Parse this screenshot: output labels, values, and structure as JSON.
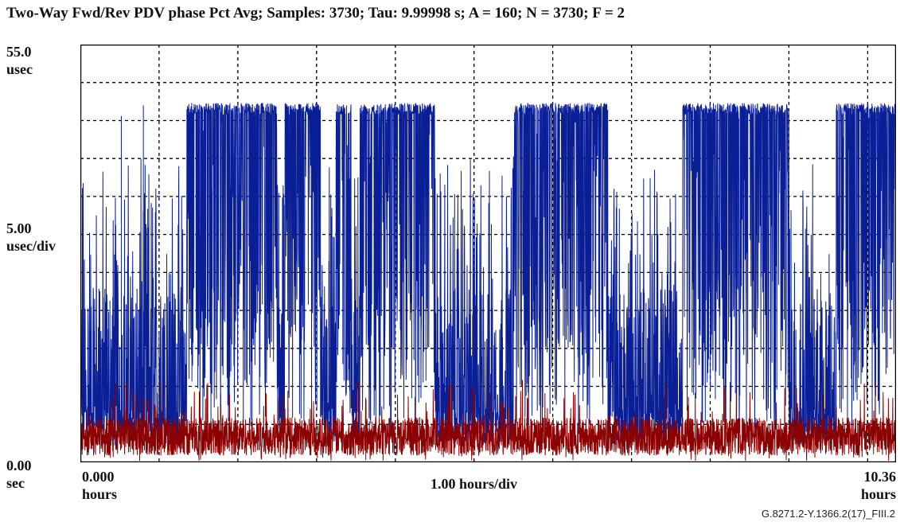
{
  "title": "Two-Way Fwd/Rev PDV phase Pct Avg; Samples: 3730; Tau: 9.99998 s; A = 160; N = 3730; F = 2",
  "y_axis": {
    "top_value": "55.0",
    "top_unit": "usec",
    "scale_value": "5.00",
    "scale_unit": "usec/div",
    "bottom_value": "0.00",
    "bottom_unit": "sec"
  },
  "x_axis": {
    "left_value": "0.000",
    "left_unit": "hours",
    "scale_label": "1.00 hours/div",
    "right_value": "10.36",
    "right_unit": "hours"
  },
  "footnote": "G.8271.2-Y.1366.2(17)_FIII.2",
  "chart_data": {
    "type": "line",
    "title": "Two-Way Fwd/Rev PDV phase Pct Avg; Samples: 3730; Tau: 9.99998 s; A = 160; N = 3730; F = 2",
    "samples": 3730,
    "xlim_hours": [
      0,
      10.36
    ],
    "x_div_hours": 1.0,
    "ylim_usec": [
      0,
      55.0
    ],
    "y_div_usec": 5.0,
    "grid": "dashed",
    "colors": {
      "blue": "#0a1f96",
      "red": "#8b0000",
      "grid": "#000000"
    },
    "series": [
      {
        "color": "blue",
        "baseline_usec": 2.2,
        "high_plateau_usec": 47.3,
        "high_plateau_intervals_hours": [
          [
            1.35,
            2.5
          ],
          [
            2.6,
            3.05
          ],
          [
            3.25,
            3.45
          ],
          [
            3.55,
            4.5
          ],
          [
            5.5,
            6.7
          ],
          [
            7.65,
            9.0
          ],
          [
            9.6,
            10.36
          ]
        ],
        "isolated_spikes": [
          {
            "x_hours": 0.52,
            "y_usec": 45.6
          },
          {
            "x_hours": 0.8,
            "y_usec": 47.0
          }
        ]
      },
      {
        "color": "red",
        "mean_usec": 3.4,
        "band_usec": [
          1.5,
          6.5
        ],
        "max_spikes_usec": 11
      }
    ]
  }
}
